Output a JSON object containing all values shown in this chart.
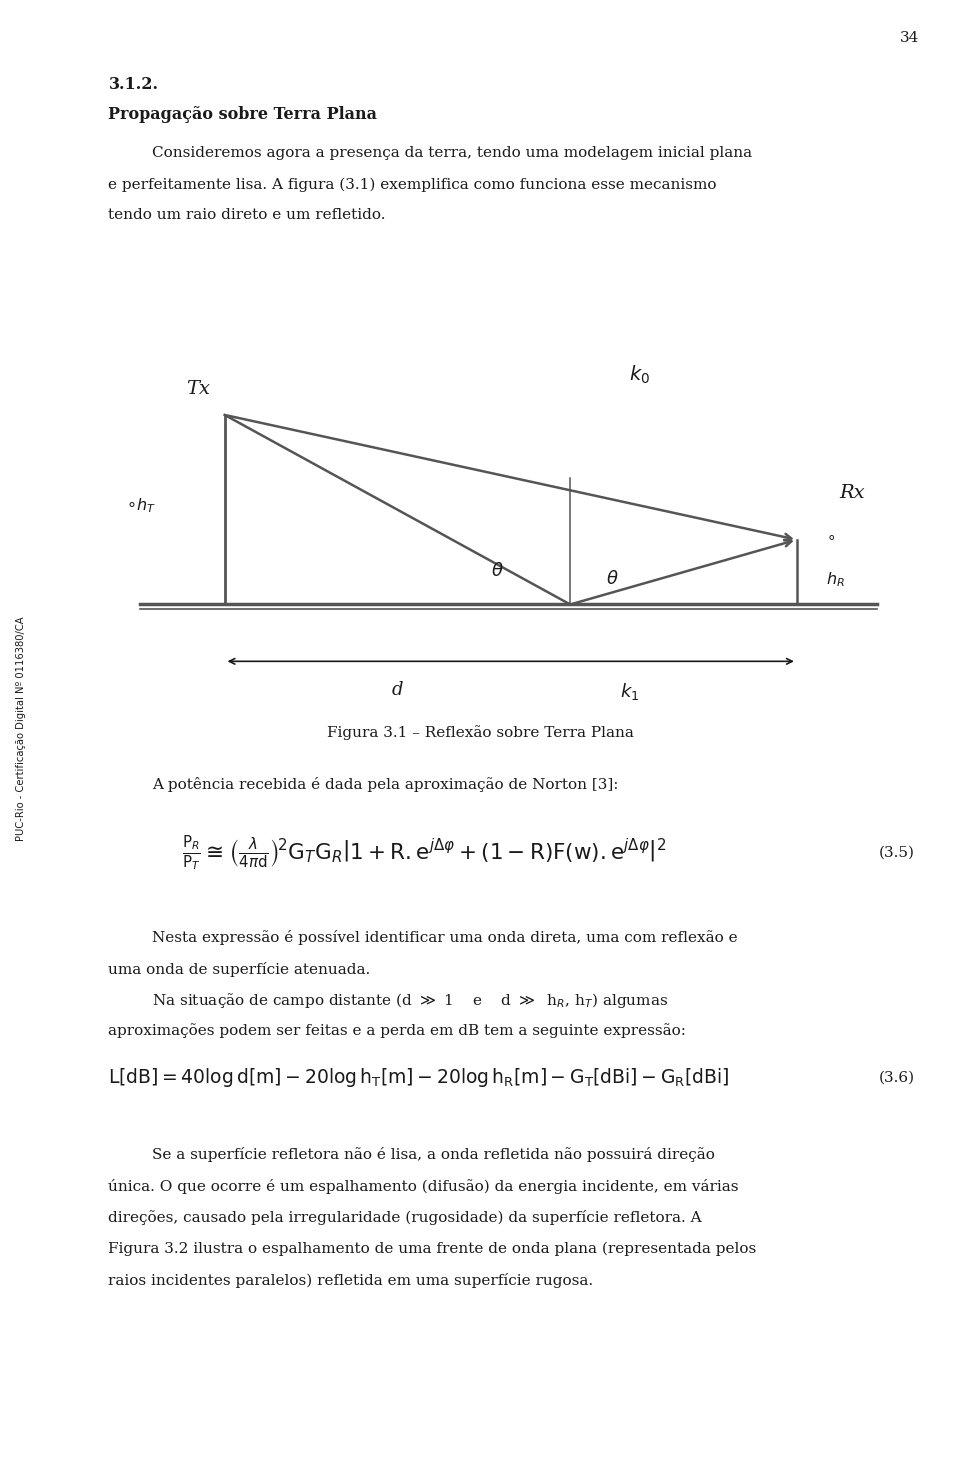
{
  "page_number": "34",
  "bg_color": "#ffffff",
  "text_color": "#1a1a1a",
  "dark_line": "#555555",
  "section_number": "3.1.2.",
  "section_title": "Propagação sobre Terra Plana",
  "figure_caption": "Figura 3.1 – Reflexão sobre Terra Plana",
  "paragraph2": "A potência recebida é dada pela aproximação de Norton [3]:",
  "equation_label1": "(3.5)",
  "equation_label2": "(3.6)",
  "paragraph3_line1": "Nesta expressão é possível identificar uma onda direta, uma com reflexão e",
  "paragraph3_line2": "uma onda de superfície atenuada.",
  "paragraph4_line1": "Na situação de campo distante (d >> 1    e    d >>  h",
  "paragraph4_end": ") algumas",
  "paragraph4_line2": "aproximações podem ser feitas e a perda em dB tem a seguinte expressão:",
  "sidebar_text": "PUC-Rio - Certificação Digital Nº 0116380/CA",
  "fs_body": 11.0,
  "fs_heading": 11.5,
  "lm": 0.113,
  "indent": 0.158,
  "rm": 0.953
}
